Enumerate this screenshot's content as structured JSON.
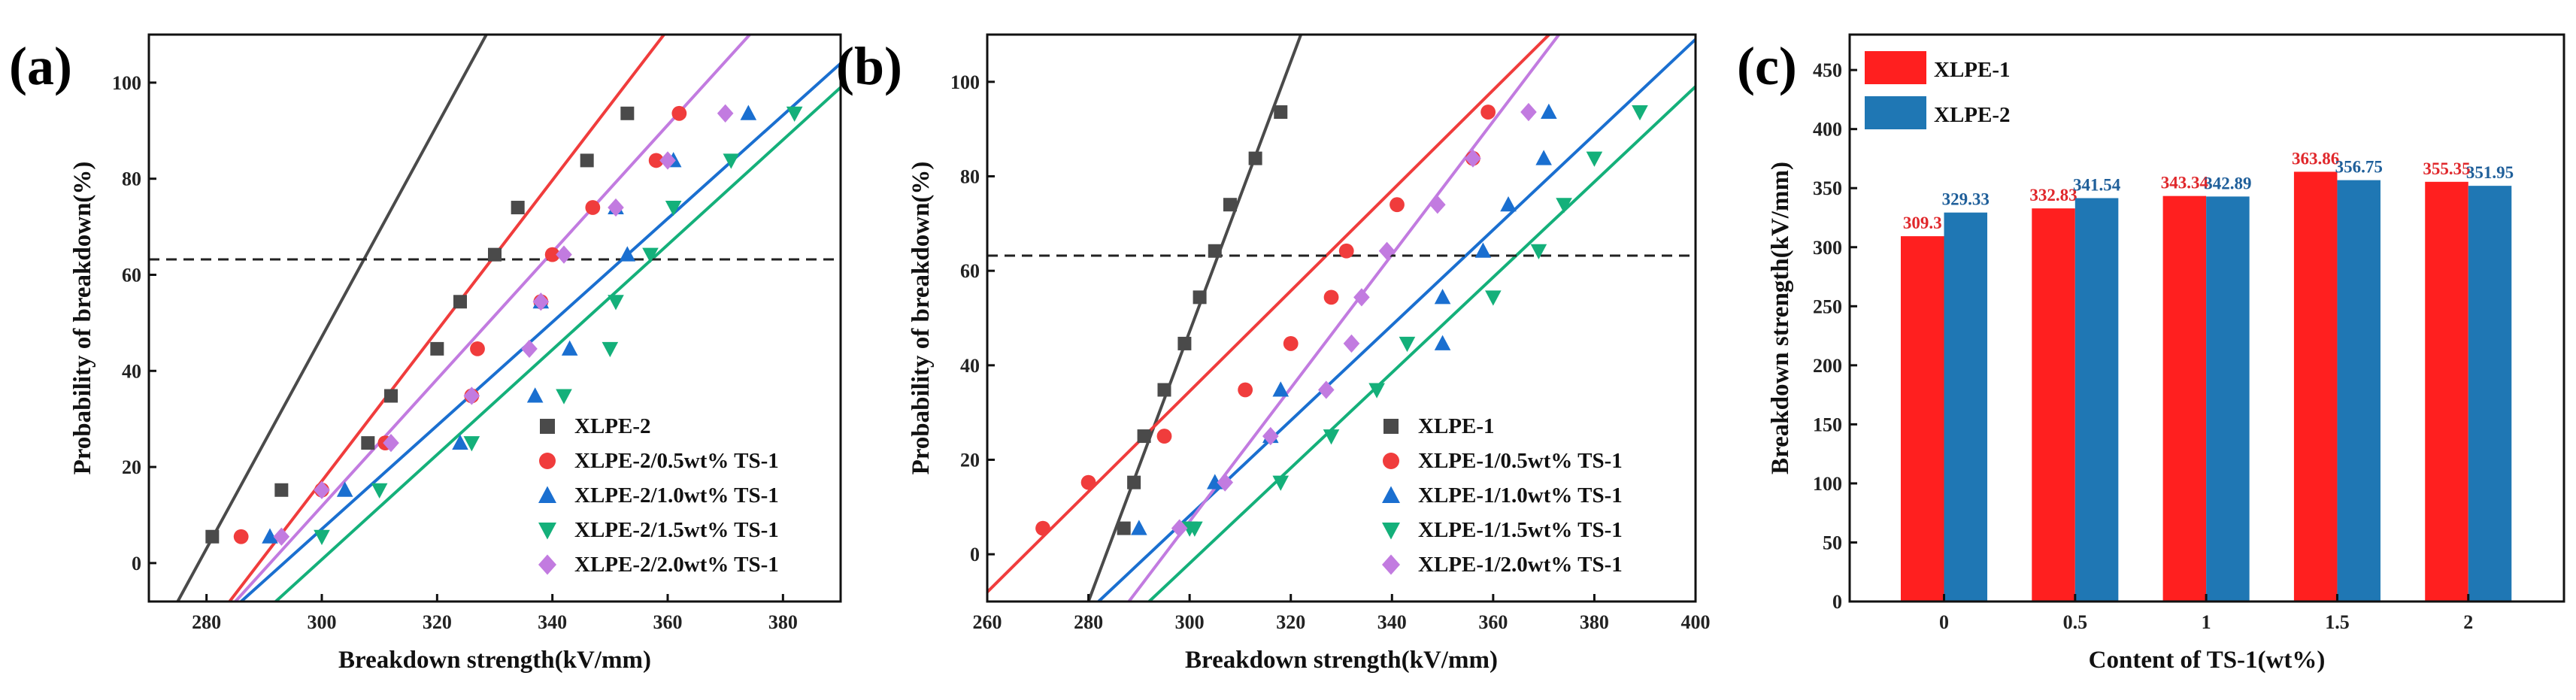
{
  "chart_data": [
    {
      "panel": "(a)",
      "type": "scatter",
      "xlabel": "Breakdown strength(kV/mm)",
      "ylabel": "Probability of breakdown(%)",
      "xlim": [
        270,
        390
      ],
      "ylim": [
        -8,
        110
      ],
      "xticks": [
        280,
        300,
        320,
        340,
        360,
        380
      ],
      "yticks": [
        0,
        20,
        40,
        60,
        80,
        100
      ],
      "reference_line_y": 63.2,
      "legend_position": "bottom-right",
      "series": [
        {
          "name": "XLPE-2",
          "color": "#4a4a4a",
          "marker": "square",
          "x": [
            281,
            293,
            308,
            312,
            320,
            324,
            330,
            334,
            346,
            353
          ],
          "y": [
            5.5,
            15.2,
            25,
            34.8,
            44.6,
            54.4,
            64.2,
            74,
            83.8,
            93.6
          ],
          "fit": [
            [
              275,
              -8
            ],
            [
              329,
              111
            ]
          ]
        },
        {
          "name": "XLPE-2/0.5wt% TS-1",
          "color": "#f03c3c",
          "marker": "circle",
          "x": [
            286,
            300,
            311,
            326,
            327,
            338,
            340,
            347,
            358,
            362
          ],
          "y": [
            5.5,
            15.2,
            25,
            34.8,
            44.6,
            54.4,
            64.2,
            74,
            83.8,
            93.6
          ],
          "fit": [
            [
              284,
              -8
            ],
            [
              360,
              111
            ]
          ]
        },
        {
          "name": "XLPE-2/1.0wt% TS-1",
          "color": "#1a6fd0",
          "marker": "triangle-up",
          "x": [
            291,
            304,
            324,
            337,
            343,
            338,
            353,
            351,
            361,
            374
          ],
          "y": [
            5.5,
            15.2,
            25,
            34.8,
            44.6,
            54.4,
            64.2,
            74,
            83.8,
            93.6
          ],
          "fit": [
            [
              286,
              -8
            ],
            [
              390,
              104
            ]
          ]
        },
        {
          "name": "XLPE-2/1.5wt% TS-1",
          "color": "#14b07a",
          "marker": "triangle-down",
          "x": [
            300,
            310,
            326,
            342,
            350,
            351,
            357,
            361,
            371,
            382
          ],
          "y": [
            5.5,
            15.2,
            25,
            34.8,
            44.6,
            54.4,
            64.2,
            74,
            83.8,
            93.6
          ],
          "fit": [
            [
              292,
              -8
            ],
            [
              390,
              99
            ]
          ]
        },
        {
          "name": "XLPE-2/2.0wt% TS-1",
          "color": "#c27be0",
          "marker": "diamond",
          "x": [
            293,
            300,
            312,
            326,
            336,
            338,
            342,
            351,
            360,
            370
          ],
          "y": [
            5.5,
            15.2,
            25,
            34.8,
            44.6,
            54.4,
            64.2,
            74,
            83.8,
            93.6
          ],
          "fit": [
            [
              285,
              -8
            ],
            [
              375,
              111
            ]
          ]
        }
      ]
    },
    {
      "panel": "(b)",
      "type": "scatter",
      "xlabel": "Breakdown strength(kV/mm)",
      "ylabel": "Probability of breakdown(%)",
      "xlim": [
        260,
        400
      ],
      "ylim": [
        -10,
        110
      ],
      "xticks": [
        260,
        280,
        300,
        320,
        340,
        360,
        380,
        400
      ],
      "yticks": [
        0,
        20,
        40,
        60,
        80,
        100
      ],
      "reference_line_y": 63.2,
      "legend_position": "bottom-right",
      "series": [
        {
          "name": "XLPE-1",
          "color": "#4a4a4a",
          "marker": "square",
          "x": [
            287,
            289,
            291,
            295,
            299,
            302,
            305,
            308,
            313,
            318
          ],
          "y": [
            5.5,
            15.2,
            25,
            34.8,
            44.6,
            54.4,
            64.2,
            74,
            83.8,
            93.6
          ],
          "fit": [
            [
              280,
              -10
            ],
            [
              322,
              110
            ]
          ]
        },
        {
          "name": "XLPE-1/0.5wt% TS-1",
          "color": "#f03c3c",
          "marker": "circle",
          "x": [
            271,
            280,
            295,
            311,
            320,
            328,
            331,
            341,
            356,
            359
          ],
          "y": [
            5.5,
            15.2,
            25,
            34.8,
            44.6,
            54.4,
            64.2,
            74,
            83.8,
            93.6
          ],
          "fit": [
            [
              260,
              -8
            ],
            [
              372,
              111
            ]
          ]
        },
        {
          "name": "XLPE-1/1.0wt% TS-1",
          "color": "#1a6fd0",
          "marker": "triangle-up",
          "x": [
            290,
            305,
            316,
            318,
            350,
            350,
            358,
            363,
            370,
            371
          ],
          "y": [
            5.5,
            15.2,
            25,
            34.8,
            44.6,
            54.4,
            64.2,
            74,
            83.8,
            93.6
          ],
          "fit": [
            [
              282,
              -10
            ],
            [
              400,
              109
            ]
          ]
        },
        {
          "name": "XLPE-1/1.5wt% TS-1",
          "color": "#14b07a",
          "marker": "triangle-down",
          "x": [
            301,
            300,
            318,
            328,
            337,
            343,
            360,
            369,
            374,
            380,
            389
          ],
          "y": [
            5.5,
            5.5,
            15.2,
            25,
            34.8,
            44.6,
            54.4,
            64.2,
            74,
            83.8,
            93.6
          ],
          "fit": [
            [
              292,
              -10
            ],
            [
              400,
              99
            ]
          ]
        },
        {
          "name": "XLPE-1/2.0wt% TS-1",
          "color": "#c27be0",
          "marker": "diamond",
          "x": [
            298,
            307,
            316,
            327,
            332,
            334,
            339,
            349,
            356,
            367
          ],
          "y": [
            5.5,
            15.2,
            25,
            34.8,
            44.6,
            54.4,
            64.2,
            74,
            83.8,
            93.6
          ],
          "fit": [
            [
              288,
              -10
            ],
            [
              373,
              110
            ]
          ]
        }
      ]
    },
    {
      "panel": "(c)",
      "type": "bar",
      "xlabel": "Content of TS-1(wt%)",
      "ylabel": "Breakdown strength(kV/mm)",
      "categories": [
        "0",
        "0.5",
        "1",
        "1.5",
        "2"
      ],
      "ylim": [
        0,
        480
      ],
      "yticks": [
        0,
        50,
        100,
        150,
        200,
        250,
        300,
        350,
        400,
        450
      ],
      "legend_position": "top-left",
      "series": [
        {
          "name": "XLPE-1",
          "color": "#ff1f1f",
          "label_color": "#e0272b",
          "values": [
            309.3,
            332.83,
            343.34,
            363.86,
            355.35
          ],
          "labels": [
            "309.3",
            "332.83",
            "343.34",
            "363.86",
            "355.35"
          ]
        },
        {
          "name": "XLPE-2",
          "color": "#1f77b4",
          "label_color": "#1f5f9a",
          "values": [
            329.33,
            341.54,
            342.89,
            356.75,
            351.95
          ],
          "labels": [
            "329.33",
            "341.54",
            "342.89",
            "356.75",
            "351.95"
          ]
        }
      ]
    }
  ]
}
